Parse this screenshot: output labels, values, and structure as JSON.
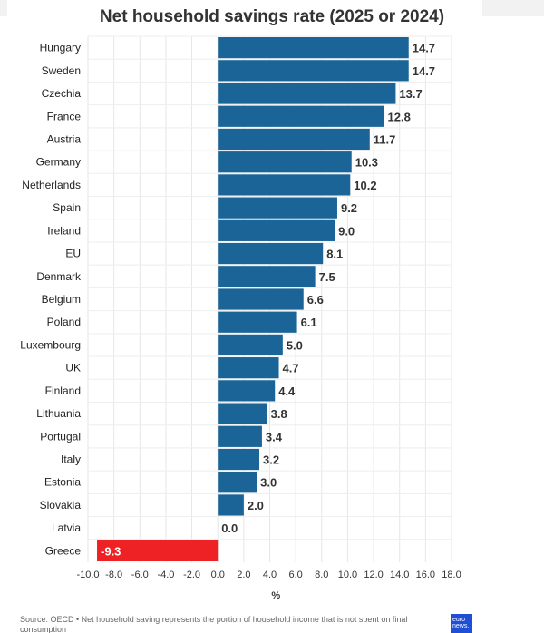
{
  "chart_data": {
    "type": "bar",
    "orientation": "horizontal",
    "title": "Net household savings rate (2025 or 2024)",
    "xlabel": "%",
    "ylabel": "",
    "xlim": [
      -10.0,
      18.0
    ],
    "x_ticks": [
      "-10.0",
      "-8.0",
      "-6.0",
      "-4.0",
      "-2.0",
      "0.0",
      "2.0",
      "4.0",
      "6.0",
      "8.0",
      "10.0",
      "12.0",
      "14.0",
      "16.0",
      "18.0"
    ],
    "grid": true,
    "legend": "none",
    "categories": [
      "Hungary",
      "Sweden",
      "Czechia",
      "France",
      "Austria",
      "Germany",
      "Netherlands",
      "Spain",
      "Ireland",
      "EU",
      "Denmark",
      "Belgium",
      "Poland",
      "Luxembourg",
      "UK",
      "Finland",
      "Lithuania",
      "Portugal",
      "Italy",
      "Estonia",
      "Slovakia",
      "Latvia",
      "Greece"
    ],
    "values": [
      14.7,
      14.7,
      13.7,
      12.8,
      11.7,
      10.3,
      10.2,
      9.2,
      9.0,
      8.1,
      7.5,
      6.6,
      6.1,
      5.0,
      4.7,
      4.4,
      3.8,
      3.4,
      3.2,
      3.0,
      2.0,
      0.0,
      -9.3
    ],
    "value_labels": [
      "14.7",
      "14.7",
      "13.7",
      "12.8",
      "11.7",
      "10.3",
      "10.2",
      "9.2",
      "9.0",
      "8.1",
      "7.5",
      "6.6",
      "6.1",
      "5.0",
      "4.7",
      "4.4",
      "3.8",
      "3.4",
      "3.2",
      "3.0",
      "2.0",
      "0.0",
      "-9.3"
    ],
    "colors": {
      "positive": "#1a6497",
      "negative": "#ee2224"
    }
  },
  "footer": {
    "source_note": "Source: OECD • Net household saving represents the portion of household income that is not spent on final consumption",
    "logo_text": "euro news."
  }
}
